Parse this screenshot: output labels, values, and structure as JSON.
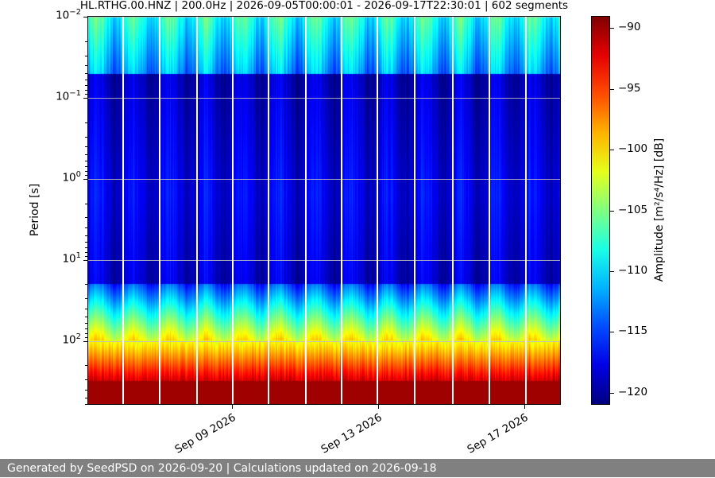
{
  "chart_data": {
    "type": "heatmap",
    "title": "HL.RTHG.00.HNZ | 200.0Hz | 2026-09-05T00:00:01 - 2026-09-17T22:30:01 | 602 segments",
    "ylabel": "Period [s]",
    "yscale": "log",
    "yaxis_inverted": true,
    "ylim": [
      0.01,
      600
    ],
    "y_ticks": [
      {
        "label": "10",
        "exp": "−2",
        "value": 0.01
      },
      {
        "label": "10",
        "exp": "−1",
        "value": 0.1
      },
      {
        "label": "10",
        "exp": "0",
        "value": 1
      },
      {
        "label": "10",
        "exp": "1",
        "value": 10
      },
      {
        "label": "10",
        "exp": "2",
        "value": 100
      }
    ],
    "x_ticks": [
      {
        "label": "Sep 09 2026"
      },
      {
        "label": "Sep 13 2026"
      },
      {
        "label": "Sep 17 2026"
      }
    ],
    "grid": true,
    "colorbar": {
      "label": "Amplitude [m²/s⁴/Hz] [dB]",
      "range": [
        -121,
        -89
      ],
      "colormap": "jet",
      "ticks": [
        "−90",
        "−95",
        "−100",
        "−105",
        "−110",
        "−115",
        "−120"
      ]
    },
    "profile_description": "Amplitude rises from about -120 dB at mid periods to about -110 dB near 0.01 s and to -90 dB near 300-600 s; daily (diurnal) energy peaks visible as vertical stripes."
  },
  "footer_text": "Generated by SeedPSD on 2026-09-20 | Calculations updated on 2026-09-18"
}
